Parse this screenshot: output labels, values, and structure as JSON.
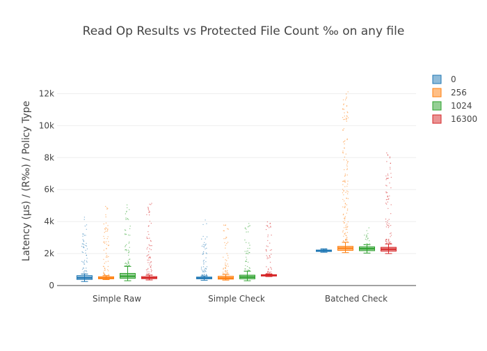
{
  "chart_data": {
    "type": "box",
    "title": "Read Op Results vs Protected File Count ‰ on any file",
    "xlabel": "",
    "ylabel": "Latency (µs) / (R‰) / Policy Type",
    "ylim": [
      0,
      13500
    ],
    "y_ticks": [
      0,
      2000,
      4000,
      6000,
      8000,
      10000,
      12000
    ],
    "y_tick_labels": [
      "0",
      "2k",
      "4k",
      "6k",
      "8k",
      "10k",
      "12k"
    ],
    "categories": [
      "Simple Raw",
      "Simple Check",
      "Batched Check"
    ],
    "grid": true,
    "legend_position": "right",
    "series": [
      {
        "name": "0",
        "color": "#1f77b4",
        "boxes": [
          {
            "lowerfence": 250,
            "q1": 380,
            "median": 480,
            "q3": 620,
            "upperfence": 720,
            "outlier_max": 4300
          },
          {
            "lowerfence": 330,
            "q1": 420,
            "median": 470,
            "q3": 530,
            "upperfence": 600,
            "outlier_max": 4300
          },
          {
            "lowerfence": 2080,
            "q1": 2130,
            "median": 2170,
            "q3": 2220,
            "upperfence": 2280,
            "outlier_max": 2300
          }
        ]
      },
      {
        "name": "256",
        "color": "#ff7f0e",
        "boxes": [
          {
            "lowerfence": 370,
            "q1": 420,
            "median": 470,
            "q3": 550,
            "upperfence": 620,
            "outlier_max": 5000
          },
          {
            "lowerfence": 340,
            "q1": 400,
            "median": 470,
            "q3": 580,
            "upperfence": 700,
            "outlier_max": 4000
          },
          {
            "lowerfence": 2060,
            "q1": 2200,
            "median": 2330,
            "q3": 2450,
            "upperfence": 2700,
            "outlier_max": 12300
          }
        ]
      },
      {
        "name": "1024",
        "color": "#2ca02c",
        "boxes": [
          {
            "lowerfence": 300,
            "q1": 450,
            "median": 580,
            "q3": 760,
            "upperfence": 1200,
            "outlier_max": 5200
          },
          {
            "lowerfence": 300,
            "q1": 420,
            "median": 530,
            "q3": 650,
            "upperfence": 900,
            "outlier_max": 3900
          },
          {
            "lowerfence": 2030,
            "q1": 2180,
            "median": 2300,
            "q3": 2420,
            "upperfence": 2550,
            "outlier_max": 3800
          }
        ]
      },
      {
        "name": "16300",
        "color": "#d62728",
        "boxes": [
          {
            "lowerfence": 350,
            "q1": 430,
            "median": 480,
            "q3": 560,
            "upperfence": 650,
            "outlier_max": 5400
          },
          {
            "lowerfence": 560,
            "q1": 600,
            "median": 640,
            "q3": 680,
            "upperfence": 720,
            "outlier_max": 4200
          },
          {
            "lowerfence": 2000,
            "q1": 2150,
            "median": 2270,
            "q3": 2390,
            "upperfence": 2600,
            "outlier_max": 8300
          }
        ]
      }
    ]
  }
}
